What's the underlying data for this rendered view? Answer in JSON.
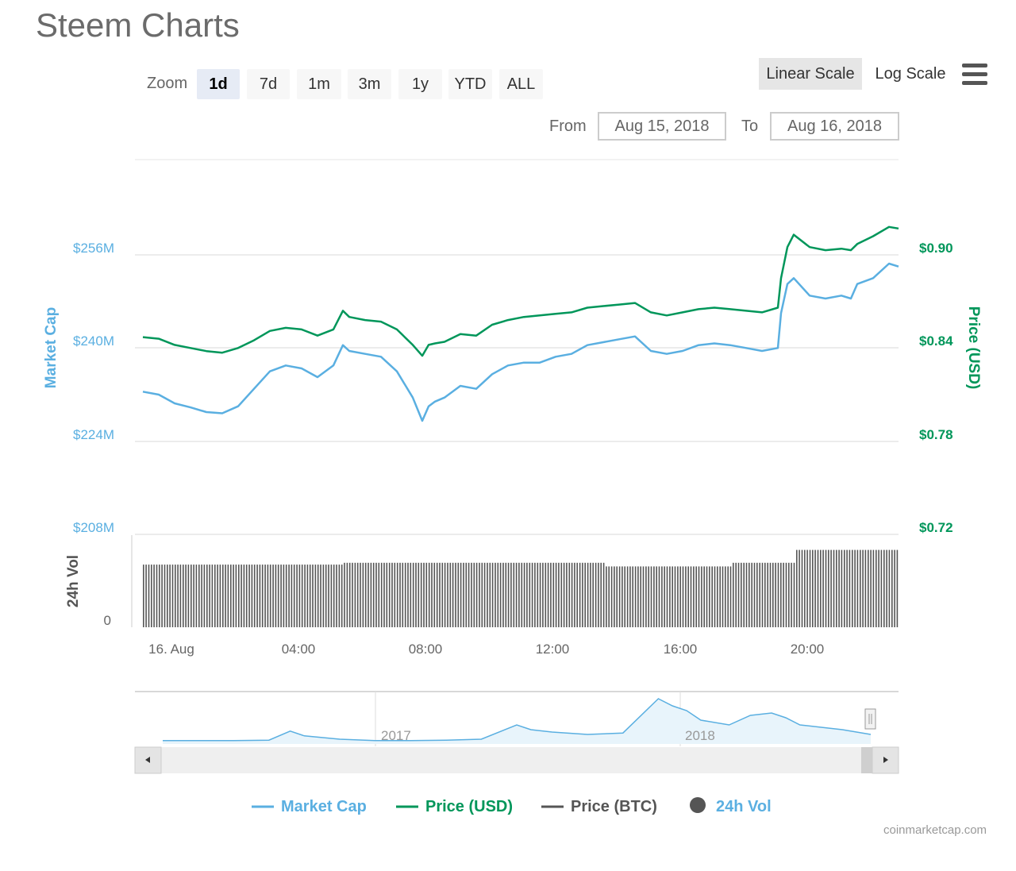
{
  "title": "Steem Charts",
  "zoom": {
    "label": "Zoom",
    "buttons": [
      "1d",
      "7d",
      "1m",
      "3m",
      "1y",
      "YTD",
      "ALL"
    ],
    "active": "1d"
  },
  "scale": {
    "linear": "Linear Scale",
    "log": "Log Scale",
    "active": "Linear Scale"
  },
  "range": {
    "from_label": "From",
    "from_value": "Aug 15, 2018",
    "to_label": "To",
    "to_value": "Aug 16, 2018"
  },
  "credit": "coinmarketcap.com",
  "colors": {
    "market_cap": "#5aafe1",
    "price_usd": "#00965a",
    "price_btc": "#555555",
    "volume": "#333333"
  },
  "chart_data": {
    "type": "line",
    "x_ticks": [
      "16. Aug",
      "04:00",
      "08:00",
      "12:00",
      "16:00",
      "20:00"
    ],
    "x_range_hours": [
      -0.25,
      23.8
    ],
    "y_left": {
      "label": "Market Cap",
      "ticks": [
        "$256M",
        "$240M",
        "$224M",
        "$208M"
      ],
      "range": [
        208,
        256
      ]
    },
    "y_right": {
      "label": "Price (USD)",
      "ticks": [
        "$0.90",
        "$0.84",
        "$0.78",
        "$0.72"
      ],
      "range": [
        0.72,
        0.9
      ]
    },
    "volume_axis": {
      "label": "24h Vol",
      "ticks": [
        "0"
      ]
    },
    "series": [
      {
        "name": "Market Cap",
        "axis": "left",
        "x": [
          0,
          0.5,
          1,
          1.5,
          2,
          2.5,
          3,
          3.5,
          4,
          4.5,
          5,
          5.5,
          6,
          6.3,
          6.5,
          7,
          7.5,
          8,
          8.5,
          8.8,
          9,
          9.2,
          9.5,
          10,
          10.5,
          11,
          11.5,
          12,
          12.5,
          13,
          13.5,
          14,
          14.5,
          15,
          15.5,
          16,
          16.5,
          17,
          17.5,
          18,
          18.5,
          19,
          19.5,
          20,
          20.1,
          20.3,
          20.5,
          21,
          21.5,
          22,
          22.3,
          22.5,
          23,
          23.5,
          23.8
        ],
        "values": [
          232.5,
          232,
          230.5,
          229.8,
          229,
          228.8,
          230,
          233,
          236,
          237,
          236.5,
          235,
          237,
          240.5,
          239.5,
          239,
          238.5,
          236,
          231.5,
          227.5,
          230,
          230.8,
          231.5,
          233.5,
          233,
          235.5,
          237,
          237.5,
          237.5,
          238.5,
          239,
          240.5,
          241,
          241.5,
          242,
          239.5,
          239,
          239.5,
          240.5,
          240.8,
          240.5,
          240,
          239.5,
          240,
          246,
          251,
          252,
          249,
          248.5,
          249,
          248.5,
          251,
          252,
          254.5,
          254
        ]
      },
      {
        "name": "Price (USD)",
        "axis": "right",
        "x": [
          0,
          0.5,
          1,
          1.5,
          2,
          2.5,
          3,
          3.5,
          4,
          4.5,
          5,
          5.5,
          6,
          6.3,
          6.5,
          7,
          7.5,
          8,
          8.5,
          8.8,
          9,
          9.2,
          9.5,
          10,
          10.5,
          11,
          11.5,
          12,
          12.5,
          13,
          13.5,
          14,
          14.5,
          15,
          15.5,
          16,
          16.5,
          17,
          17.5,
          18,
          18.5,
          19,
          19.5,
          20,
          20.1,
          20.3,
          20.5,
          21,
          21.5,
          22,
          22.3,
          22.5,
          23,
          23.5,
          23.8
        ],
        "values": [
          0.847,
          0.846,
          0.842,
          0.84,
          0.838,
          0.837,
          0.84,
          0.845,
          0.851,
          0.853,
          0.852,
          0.848,
          0.852,
          0.864,
          0.86,
          0.858,
          0.857,
          0.852,
          0.842,
          0.835,
          0.842,
          0.843,
          0.844,
          0.849,
          0.848,
          0.855,
          0.858,
          0.86,
          0.861,
          0.862,
          0.863,
          0.866,
          0.867,
          0.868,
          0.869,
          0.863,
          0.861,
          0.863,
          0.865,
          0.866,
          0.865,
          0.864,
          0.863,
          0.866,
          0.885,
          0.905,
          0.913,
          0.905,
          0.903,
          0.904,
          0.903,
          0.907,
          0.912,
          0.918,
          0.917
        ]
      }
    ],
    "volume_levels": [
      {
        "from": 0,
        "to": 6.3,
        "level": 0.68
      },
      {
        "from": 6.3,
        "to": 14.5,
        "level": 0.7
      },
      {
        "from": 14.5,
        "to": 18.5,
        "level": 0.66
      },
      {
        "from": 18.5,
        "to": 20.5,
        "level": 0.7
      },
      {
        "from": 20.5,
        "to": 23.8,
        "level": 0.84
      }
    ],
    "navigator": {
      "labels": [
        "2017",
        "2018"
      ],
      "x": [
        0,
        0.05,
        0.1,
        0.15,
        0.18,
        0.2,
        0.25,
        0.3,
        0.35,
        0.4,
        0.45,
        0.5,
        0.52,
        0.55,
        0.6,
        0.65,
        0.7,
        0.72,
        0.74,
        0.76,
        0.8,
        0.83,
        0.86,
        0.88,
        0.9,
        0.93,
        0.96,
        1.0
      ],
      "values": [
        0.02,
        0.02,
        0.02,
        0.03,
        0.22,
        0.12,
        0.05,
        0.02,
        0.02,
        0.03,
        0.05,
        0.35,
        0.25,
        0.2,
        0.15,
        0.18,
        0.9,
        0.75,
        0.65,
        0.45,
        0.35,
        0.55,
        0.6,
        0.5,
        0.35,
        0.3,
        0.25,
        0.15
      ]
    },
    "legend": [
      {
        "name": "Market Cap",
        "marker": "line",
        "color": "#5aafe1"
      },
      {
        "name": "Price (USD)",
        "marker": "line",
        "color": "#00965a"
      },
      {
        "name": "Price (BTC)",
        "marker": "line",
        "color": "#555555"
      },
      {
        "name": "24h Vol",
        "marker": "circle",
        "color": "#555555"
      }
    ],
    "legend_placement": "bottom-center",
    "grid": true
  }
}
